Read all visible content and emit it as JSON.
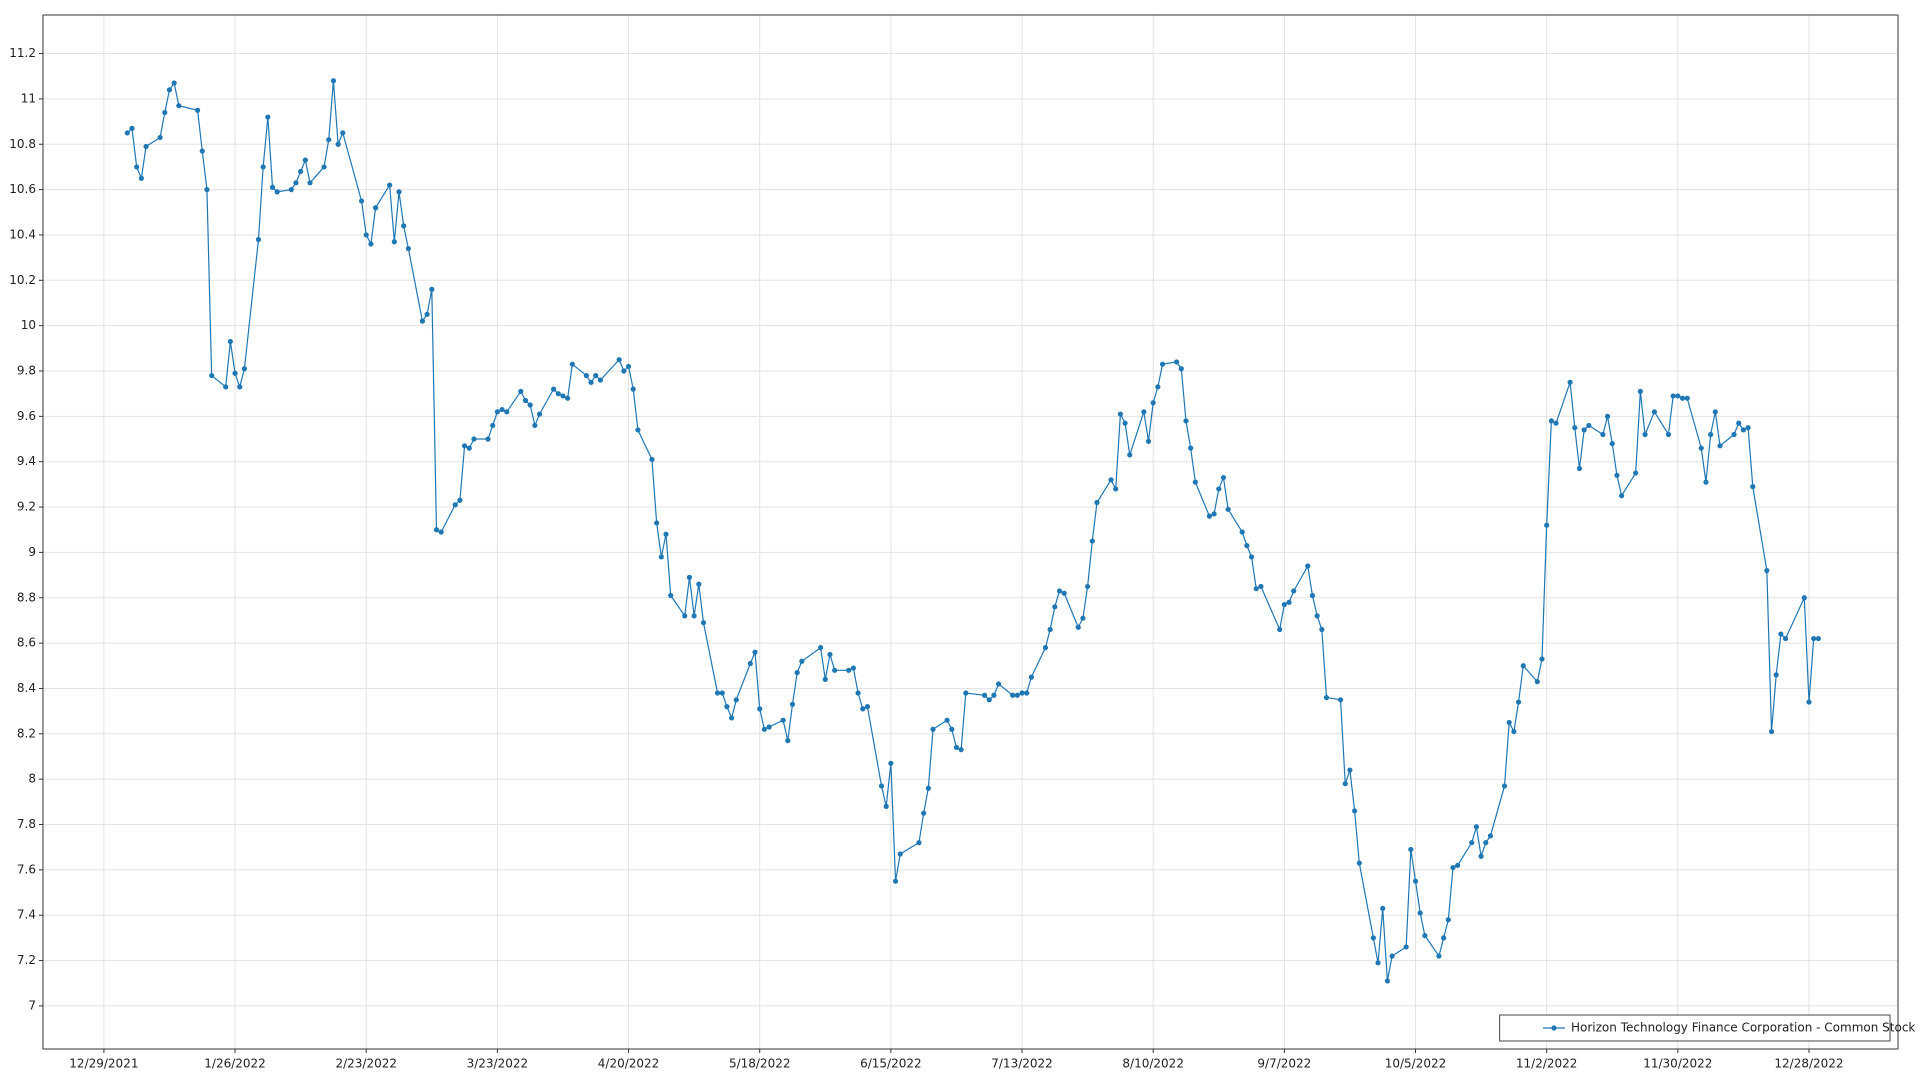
{
  "chart_data": {
    "type": "line",
    "grid": true,
    "legend": "lower right",
    "xlim": [
      "12/16/2021",
      "1/16/2023"
    ],
    "xticks": [
      "12/29/2021",
      "1/26/2022",
      "2/23/2022",
      "3/23/2022",
      "4/20/2022",
      "5/18/2022",
      "6/15/2022",
      "7/13/2022",
      "8/10/2022",
      "9/7/2022",
      "10/5/2022",
      "11/2/2022",
      "11/30/2022",
      "12/28/2022"
    ],
    "ylim": [
      6.81,
      11.37
    ],
    "yticks": [
      7,
      7.2,
      7.4,
      7.6,
      7.8,
      8,
      8.2,
      8.4,
      8.6,
      8.8,
      9,
      9.2,
      9.4,
      9.6,
      9.8,
      10,
      10.2,
      10.4,
      10.6,
      10.8,
      11,
      11.2
    ],
    "x": [
      "1/3/2022",
      "1/4/2022",
      "1/5/2022",
      "1/6/2022",
      "1/7/2022",
      "1/10/2022",
      "1/11/2022",
      "1/12/2022",
      "1/13/2022",
      "1/14/2022",
      "1/18/2022",
      "1/19/2022",
      "1/20/2022",
      "1/21/2022",
      "1/24/2022",
      "1/25/2022",
      "1/26/2022",
      "1/27/2022",
      "1/28/2022",
      "1/31/2022",
      "2/1/2022",
      "2/2/2022",
      "2/3/2022",
      "2/4/2022",
      "2/7/2022",
      "2/8/2022",
      "2/9/2022",
      "2/10/2022",
      "2/11/2022",
      "2/14/2022",
      "2/15/2022",
      "2/16/2022",
      "2/17/2022",
      "2/18/2022",
      "2/22/2022",
      "2/23/2022",
      "2/24/2022",
      "2/25/2022",
      "2/28/2022",
      "3/1/2022",
      "3/2/2022",
      "3/3/2022",
      "3/4/2022",
      "3/7/2022",
      "3/8/2022",
      "3/9/2022",
      "3/10/2022",
      "3/11/2022",
      "3/14/2022",
      "3/15/2022",
      "3/16/2022",
      "3/17/2022",
      "3/18/2022",
      "3/21/2022",
      "3/22/2022",
      "3/23/2022",
      "3/24/2022",
      "3/25/2022",
      "3/28/2022",
      "3/29/2022",
      "3/30/2022",
      "3/31/2022",
      "4/1/2022",
      "4/4/2022",
      "4/5/2022",
      "4/6/2022",
      "4/7/2022",
      "4/8/2022",
      "4/11/2022",
      "4/12/2022",
      "4/13/2022",
      "4/14/2022",
      "4/18/2022",
      "4/19/2022",
      "4/20/2022",
      "4/21/2022",
      "4/22/2022",
      "4/25/2022",
      "4/26/2022",
      "4/27/2022",
      "4/28/2022",
      "4/29/2022",
      "5/2/2022",
      "5/3/2022",
      "5/4/2022",
      "5/5/2022",
      "5/6/2022",
      "5/9/2022",
      "5/10/2022",
      "5/11/2022",
      "5/12/2022",
      "5/13/2022",
      "5/16/2022",
      "5/17/2022",
      "5/18/2022",
      "5/19/2022",
      "5/20/2022",
      "5/23/2022",
      "5/24/2022",
      "5/25/2022",
      "5/26/2022",
      "5/27/2022",
      "5/31/2022",
      "6/1/2022",
      "6/2/2022",
      "6/3/2022",
      "6/6/2022",
      "6/7/2022",
      "6/8/2022",
      "6/9/2022",
      "6/10/2022",
      "6/13/2022",
      "6/14/2022",
      "6/15/2022",
      "6/16/2022",
      "6/17/2022",
      "6/21/2022",
      "6/22/2022",
      "6/23/2022",
      "6/24/2022",
      "6/27/2022",
      "6/28/2022",
      "6/29/2022",
      "6/30/2022",
      "7/1/2022",
      "7/5/2022",
      "7/6/2022",
      "7/7/2022",
      "7/8/2022",
      "7/11/2022",
      "7/12/2022",
      "7/13/2022",
      "7/14/2022",
      "7/15/2022",
      "7/18/2022",
      "7/19/2022",
      "7/20/2022",
      "7/21/2022",
      "7/22/2022",
      "7/25/2022",
      "7/26/2022",
      "7/27/2022",
      "7/28/2022",
      "7/29/2022",
      "8/1/2022",
      "8/2/2022",
      "8/3/2022",
      "8/4/2022",
      "8/5/2022",
      "8/8/2022",
      "8/9/2022",
      "8/10/2022",
      "8/11/2022",
      "8/12/2022",
      "8/15/2022",
      "8/16/2022",
      "8/17/2022",
      "8/18/2022",
      "8/19/2022",
      "8/22/2022",
      "8/23/2022",
      "8/24/2022",
      "8/25/2022",
      "8/26/2022",
      "8/29/2022",
      "8/30/2022",
      "8/31/2022",
      "9/1/2022",
      "9/2/2022",
      "9/6/2022",
      "9/7/2022",
      "9/8/2022",
      "9/9/2022",
      "9/12/2022",
      "9/13/2022",
      "9/14/2022",
      "9/15/2022",
      "9/16/2022",
      "9/19/2022",
      "9/20/2022",
      "9/21/2022",
      "9/22/2022",
      "9/23/2022",
      "9/26/2022",
      "9/27/2022",
      "9/28/2022",
      "9/29/2022",
      "9/30/2022",
      "10/3/2022",
      "10/4/2022",
      "10/5/2022",
      "10/6/2022",
      "10/7/2022",
      "10/10/2022",
      "10/11/2022",
      "10/12/2022",
      "10/13/2022",
      "10/14/2022",
      "10/17/2022",
      "10/18/2022",
      "10/19/2022",
      "10/20/2022",
      "10/21/2022",
      "10/24/2022",
      "10/25/2022",
      "10/26/2022",
      "10/27/2022",
      "10/28/2022",
      "10/31/2022",
      "11/1/2022",
      "11/2/2022",
      "11/3/2022",
      "11/4/2022",
      "11/7/2022",
      "11/8/2022",
      "11/9/2022",
      "11/10/2022",
      "11/11/2022",
      "11/14/2022",
      "11/15/2022",
      "11/16/2022",
      "11/17/2022",
      "11/18/2022",
      "11/21/2022",
      "11/22/2022",
      "11/23/2022",
      "11/25/2022",
      "11/28/2022",
      "11/29/2022",
      "11/30/2022",
      "12/1/2022",
      "12/2/2022",
      "12/5/2022",
      "12/6/2022",
      "12/7/2022",
      "12/8/2022",
      "12/9/2022",
      "12/12/2022",
      "12/13/2022",
      "12/14/2022",
      "12/15/2022",
      "12/16/2022",
      "12/19/2022",
      "12/20/2022",
      "12/21/2022",
      "12/22/2022",
      "12/23/2022",
      "12/27/2022",
      "12/28/2022",
      "12/29/2022",
      "12/30/2022"
    ],
    "series": [
      {
        "name": "Horizon Technology Finance Corporation - Common Stock",
        "color": "#1f77b4",
        "values": [
          10.85,
          10.87,
          10.7,
          10.65,
          10.79,
          10.83,
          10.94,
          11.04,
          11.07,
          10.97,
          10.95,
          10.77,
          10.6,
          9.78,
          9.73,
          9.93,
          9.79,
          9.73,
          9.81,
          10.38,
          10.7,
          10.92,
          10.61,
          10.59,
          10.6,
          10.63,
          10.68,
          10.73,
          10.63,
          10.7,
          10.82,
          11.08,
          10.8,
          10.85,
          10.55,
          10.4,
          10.36,
          10.52,
          10.62,
          10.37,
          10.59,
          10.44,
          10.34,
          10.02,
          10.05,
          10.16,
          9.1,
          9.09,
          9.21,
          9.23,
          9.47,
          9.46,
          9.5,
          9.5,
          9.56,
          9.62,
          9.63,
          9.62,
          9.71,
          9.67,
          9.65,
          9.56,
          9.61,
          9.72,
          9.7,
          9.69,
          9.68,
          9.83,
          9.78,
          9.75,
          9.78,
          9.76,
          9.85,
          9.8,
          9.82,
          9.72,
          9.54,
          9.41,
          9.13,
          8.98,
          9.08,
          8.81,
          8.72,
          8.89,
          8.72,
          8.86,
          8.69,
          8.38,
          8.38,
          8.32,
          8.27,
          8.35,
          8.51,
          8.56,
          8.31,
          8.22,
          8.23,
          8.26,
          8.17,
          8.33,
          8.47,
          8.52,
          8.58,
          8.44,
          8.55,
          8.48,
          8.48,
          8.49,
          8.38,
          8.31,
          8.32,
          7.97,
          7.88,
          8.07,
          7.55,
          7.67,
          7.72,
          7.85,
          7.96,
          8.22,
          8.26,
          8.22,
          8.14,
          8.13,
          8.38,
          8.37,
          8.35,
          8.37,
          8.42,
          8.37,
          8.37,
          8.38,
          8.38,
          8.45,
          8.58,
          8.66,
          8.76,
          8.83,
          8.82,
          8.67,
          8.71,
          8.85,
          9.05,
          9.22,
          9.32,
          9.28,
          9.61,
          9.57,
          9.43,
          9.62,
          9.49,
          9.66,
          9.73,
          9.83,
          9.84,
          9.81,
          9.58,
          9.46,
          9.31,
          9.16,
          9.17,
          9.28,
          9.33,
          9.19,
          9.09,
          9.03,
          8.98,
          8.84,
          8.85,
          8.66,
          8.77,
          8.78,
          8.83,
          8.94,
          8.81,
          8.72,
          8.66,
          8.36,
          8.35,
          7.98,
          8.04,
          7.86,
          7.63,
          7.3,
          7.19,
          7.43,
          7.11,
          7.22,
          7.26,
          7.69,
          7.55,
          7.41,
          7.31,
          7.22,
          7.3,
          7.38,
          7.61,
          7.62,
          7.72,
          7.79,
          7.66,
          7.72,
          7.75,
          7.97,
          8.25,
          8.21,
          8.34,
          8.5,
          8.43,
          8.53,
          9.12,
          9.58,
          9.57,
          9.75,
          9.55,
          9.37,
          9.54,
          9.56,
          9.52,
          9.6,
          9.48,
          9.34,
          9.25,
          9.35,
          9.71,
          9.52,
          9.62,
          9.52,
          9.69,
          9.69,
          9.68,
          9.68,
          9.46,
          9.31,
          9.52,
          9.62,
          9.47,
          9.52,
          9.57,
          9.54,
          9.55,
          9.29,
          8.92,
          8.21,
          8.46,
          8.64,
          8.62,
          8.8,
          8.34,
          8.62,
          8.62
        ]
      }
    ]
  }
}
